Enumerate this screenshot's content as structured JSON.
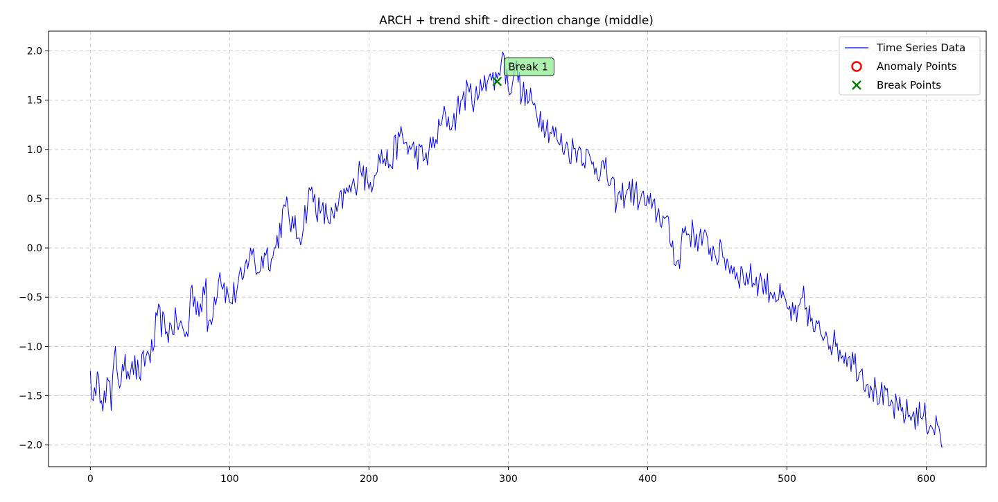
{
  "chart_data": {
    "type": "line",
    "title": "ARCH + trend shift - direction change (middle)",
    "xlabel": "",
    "ylabel": "",
    "xlim": [
      -30,
      643
    ],
    "ylim": [
      -2.22,
      2.2
    ],
    "grid": true,
    "xticks": [
      0,
      100,
      200,
      300,
      400,
      500,
      600
    ],
    "yticks": [
      2.0,
      1.5,
      1.0,
      0.5,
      0.0,
      -0.5,
      -1.0,
      -1.5,
      -2.0
    ],
    "xtick_labels": [
      "0",
      "100",
      "200",
      "300",
      "400",
      "500",
      "600"
    ],
    "ytick_labels": [
      "2.0",
      "1.5",
      "1.0",
      "0.5",
      "0.0",
      "−0.5",
      "−1.0",
      "−1.5",
      "−2.0"
    ],
    "legend_position": "top-right",
    "legend": [
      {
        "label": "Time Series Data",
        "marker": "line",
        "color": "#0000ff"
      },
      {
        "label": "Anomaly Points",
        "marker": "circle",
        "color": "#ff0000"
      },
      {
        "label": "Break Points",
        "marker": "x",
        "color": "#008000"
      }
    ],
    "series": [
      {
        "name": "Time Series Data",
        "color": "#0000ff",
        "trend_points": [
          {
            "x": 0,
            "y": -1.25
          },
          {
            "x": 2,
            "y": -1.55
          },
          {
            "x": 4,
            "y": -1.5
          },
          {
            "x": 6,
            "y": -1.3
          },
          {
            "x": 8,
            "y": -1.55
          },
          {
            "x": 10,
            "y": -1.45
          },
          {
            "x": 14,
            "y": -1.35
          },
          {
            "x": 15,
            "y": -1.65
          },
          {
            "x": 18,
            "y": -1.0
          },
          {
            "x": 20,
            "y": -1.35
          },
          {
            "x": 24,
            "y": -1.25
          },
          {
            "x": 30,
            "y": -1.15
          },
          {
            "x": 35,
            "y": -1.3
          },
          {
            "x": 40,
            "y": -1.1
          },
          {
            "x": 45,
            "y": -1.05
          },
          {
            "x": 48,
            "y": -0.69
          },
          {
            "x": 55,
            "y": -0.85
          },
          {
            "x": 62,
            "y": -0.75
          },
          {
            "x": 70,
            "y": -0.9
          },
          {
            "x": 72,
            "y": -0.42
          },
          {
            "x": 80,
            "y": -0.65
          },
          {
            "x": 83,
            "y": -0.31
          },
          {
            "x": 84,
            "y": -0.85
          },
          {
            "x": 93,
            "y": -0.25
          },
          {
            "x": 100,
            "y": -0.55
          },
          {
            "x": 110,
            "y": -0.3
          },
          {
            "x": 115,
            "y": 0.0
          },
          {
            "x": 120,
            "y": -0.25
          },
          {
            "x": 125,
            "y": -0.05
          },
          {
            "x": 131,
            "y": -0.1
          },
          {
            "x": 140,
            "y": 0.42
          },
          {
            "x": 146,
            "y": 0.2
          },
          {
            "x": 150,
            "y": 0.1
          },
          {
            "x": 158,
            "y": 0.58
          },
          {
            "x": 165,
            "y": 0.35
          },
          {
            "x": 175,
            "y": 0.3
          },
          {
            "x": 183,
            "y": 0.55
          },
          {
            "x": 190,
            "y": 0.6
          },
          {
            "x": 193,
            "y": 0.88
          },
          {
            "x": 200,
            "y": 0.6
          },
          {
            "x": 207,
            "y": 0.95
          },
          {
            "x": 215,
            "y": 0.85
          },
          {
            "x": 222,
            "y": 1.13
          },
          {
            "x": 230,
            "y": 1.0
          },
          {
            "x": 240,
            "y": 0.9
          },
          {
            "x": 248,
            "y": 1.1
          },
          {
            "x": 255,
            "y": 1.35
          },
          {
            "x": 260,
            "y": 1.25
          },
          {
            "x": 266,
            "y": 1.5
          },
          {
            "x": 272,
            "y": 1.58
          },
          {
            "x": 278,
            "y": 1.5
          },
          {
            "x": 283,
            "y": 1.75
          },
          {
            "x": 288,
            "y": 1.7
          },
          {
            "x": 292,
            "y": 1.72
          },
          {
            "x": 296,
            "y": 1.99
          },
          {
            "x": 300,
            "y": 1.6
          },
          {
            "x": 305,
            "y": 1.85
          },
          {
            "x": 310,
            "y": 1.55
          },
          {
            "x": 318,
            "y": 1.45
          },
          {
            "x": 325,
            "y": 1.3
          },
          {
            "x": 335,
            "y": 1.1
          },
          {
            "x": 343,
            "y": 1.0
          },
          {
            "x": 352,
            "y": 1.0
          },
          {
            "x": 360,
            "y": 0.85
          },
          {
            "x": 369,
            "y": 0.8
          },
          {
            "x": 378,
            "y": 0.47
          },
          {
            "x": 386,
            "y": 0.6
          },
          {
            "x": 395,
            "y": 0.5
          },
          {
            "x": 403,
            "y": 0.4
          },
          {
            "x": 412,
            "y": 0.3
          },
          {
            "x": 423,
            "y": -0.21
          },
          {
            "x": 425,
            "y": 0.2
          },
          {
            "x": 437,
            "y": 0.1
          },
          {
            "x": 445,
            "y": 0.0
          },
          {
            "x": 455,
            "y": -0.1
          },
          {
            "x": 464,
            "y": -0.25
          },
          {
            "x": 473,
            "y": -0.3
          },
          {
            "x": 482,
            "y": -0.35
          },
          {
            "x": 491,
            "y": -0.45
          },
          {
            "x": 500,
            "y": -0.6
          },
          {
            "x": 507,
            "y": -0.75
          },
          {
            "x": 511,
            "y": -0.5
          },
          {
            "x": 520,
            "y": -0.85
          },
          {
            "x": 528,
            "y": -0.85
          },
          {
            "x": 535,
            "y": -1.0
          },
          {
            "x": 545,
            "y": -1.1
          },
          {
            "x": 553,
            "y": -1.25
          },
          {
            "x": 560,
            "y": -1.4
          },
          {
            "x": 567,
            "y": -1.5
          },
          {
            "x": 574,
            "y": -1.6
          },
          {
            "x": 580,
            "y": -1.65
          },
          {
            "x": 590,
            "y": -1.7
          },
          {
            "x": 598,
            "y": -1.7
          },
          {
            "x": 603,
            "y": -1.8
          },
          {
            "x": 608,
            "y": -1.8
          },
          {
            "x": 612,
            "y": -2.02
          }
        ]
      }
    ],
    "break_points": [
      {
        "x": 292,
        "y": 1.69,
        "label": "Break 1"
      }
    ],
    "anomaly_points": []
  }
}
